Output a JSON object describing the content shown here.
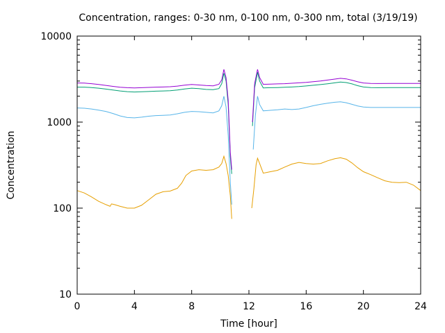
{
  "chart_data": {
    "type": "line",
    "title": "Concentration, ranges: 0-30 nm, 0-100 nm, 0-300 nm, total (3/19/19)",
    "xlabel": "Time [hour]",
    "ylabel": "Concentration",
    "xlim": [
      0,
      24
    ],
    "ylim": [
      10,
      10000
    ],
    "yscale": "log",
    "grid": false,
    "x_ticks": [
      0,
      4,
      8,
      12,
      16,
      20,
      24
    ],
    "x_tick_labels": [
      "0",
      "4",
      "8",
      "12",
      "16",
      "20",
      "24"
    ],
    "y_ticks": [
      10,
      100,
      1000,
      10000
    ],
    "y_tick_labels": [
      "10",
      "100",
      "1000",
      "10000"
    ],
    "series": [
      {
        "color": "#e69f00",
        "segments": [
          [
            [
              0,
              160
            ],
            [
              0.5,
              150
            ],
            [
              1,
              135
            ],
            [
              1.5,
              120
            ],
            [
              2,
              110
            ],
            [
              2.3,
              105
            ],
            [
              2.4,
              112
            ],
            [
              2.6,
              110
            ],
            [
              3,
              105
            ],
            [
              3.5,
              100
            ],
            [
              4,
              100
            ],
            [
              4.5,
              108
            ],
            [
              5,
              125
            ],
            [
              5.5,
              145
            ],
            [
              6,
              155
            ],
            [
              6.5,
              158
            ],
            [
              7,
              170
            ],
            [
              7.3,
              195
            ],
            [
              7.6,
              240
            ],
            [
              8,
              270
            ],
            [
              8.5,
              280
            ],
            [
              9,
              275
            ],
            [
              9.5,
              280
            ],
            [
              9.9,
              300
            ],
            [
              10.1,
              330
            ],
            [
              10.25,
              400
            ],
            [
              10.4,
              330
            ],
            [
              10.55,
              240
            ],
            [
              10.7,
              140
            ],
            [
              10.8,
              75
            ]
          ],
          [
            [
              12.2,
              100
            ],
            [
              12.35,
              170
            ],
            [
              12.5,
              320
            ],
            [
              12.6,
              380
            ],
            [
              12.75,
              330
            ],
            [
              13,
              255
            ],
            [
              13.5,
              265
            ],
            [
              14,
              275
            ],
            [
              14.5,
              300
            ],
            [
              15,
              325
            ],
            [
              15.5,
              340
            ],
            [
              16,
              330
            ],
            [
              16.5,
              325
            ],
            [
              17,
              330
            ],
            [
              17.5,
              355
            ],
            [
              18,
              375
            ],
            [
              18.4,
              385
            ],
            [
              18.8,
              370
            ],
            [
              19.2,
              335
            ],
            [
              19.6,
              295
            ],
            [
              20,
              265
            ],
            [
              20.5,
              245
            ],
            [
              21,
              225
            ],
            [
              21.5,
              208
            ],
            [
              22,
              200
            ],
            [
              22.5,
              198
            ],
            [
              23,
              200
            ],
            [
              23.5,
              185
            ],
            [
              24,
              160
            ]
          ]
        ]
      },
      {
        "color": "#56b4e9",
        "segments": [
          [
            [
              0,
              1460
            ],
            [
              0.5,
              1450
            ],
            [
              1,
              1420
            ],
            [
              1.5,
              1380
            ],
            [
              2,
              1330
            ],
            [
              2.5,
              1260
            ],
            [
              3,
              1180
            ],
            [
              3.5,
              1130
            ],
            [
              4,
              1120
            ],
            [
              4.5,
              1140
            ],
            [
              5,
              1170
            ],
            [
              5.5,
              1190
            ],
            [
              6,
              1200
            ],
            [
              6.5,
              1210
            ],
            [
              7,
              1250
            ],
            [
              7.5,
              1300
            ],
            [
              8,
              1330
            ],
            [
              8.5,
              1320
            ],
            [
              9,
              1300
            ],
            [
              9.5,
              1280
            ],
            [
              9.9,
              1350
            ],
            [
              10.1,
              1550
            ],
            [
              10.25,
              2000
            ],
            [
              10.4,
              1500
            ],
            [
              10.55,
              700
            ],
            [
              10.7,
              200
            ],
            [
              10.8,
              110
            ]
          ],
          [
            [
              12.3,
              480
            ],
            [
              12.45,
              1200
            ],
            [
              12.6,
              2000
            ],
            [
              12.75,
              1600
            ],
            [
              13,
              1350
            ],
            [
              13.5,
              1370
            ],
            [
              14,
              1390
            ],
            [
              14.5,
              1420
            ],
            [
              15,
              1400
            ],
            [
              15.5,
              1420
            ],
            [
              16,
              1480
            ],
            [
              16.5,
              1550
            ],
            [
              17,
              1610
            ],
            [
              17.5,
              1660
            ],
            [
              18,
              1700
            ],
            [
              18.4,
              1720
            ],
            [
              18.8,
              1680
            ],
            [
              19.2,
              1610
            ],
            [
              19.6,
              1540
            ],
            [
              20,
              1500
            ],
            [
              20.5,
              1480
            ],
            [
              21,
              1480
            ],
            [
              22,
              1480
            ],
            [
              23,
              1480
            ],
            [
              24,
              1480
            ]
          ]
        ]
      },
      {
        "color": "#009e73",
        "segments": [
          [
            [
              0,
              2550
            ],
            [
              0.5,
              2550
            ],
            [
              1,
              2520
            ],
            [
              1.5,
              2480
            ],
            [
              2,
              2420
            ],
            [
              2.5,
              2360
            ],
            [
              3,
              2300
            ],
            [
              3.5,
              2260
            ],
            [
              4,
              2240
            ],
            [
              4.5,
              2250
            ],
            [
              5,
              2270
            ],
            [
              5.5,
              2290
            ],
            [
              6,
              2300
            ],
            [
              6.5,
              2320
            ],
            [
              7,
              2360
            ],
            [
              7.5,
              2430
            ],
            [
              8,
              2480
            ],
            [
              8.5,
              2450
            ],
            [
              9,
              2400
            ],
            [
              9.5,
              2380
            ],
            [
              9.9,
              2450
            ],
            [
              10.1,
              2800
            ],
            [
              10.25,
              3700
            ],
            [
              10.4,
              3000
            ],
            [
              10.55,
              1600
            ],
            [
              10.7,
              400
            ],
            [
              10.8,
              250
            ]
          ],
          [
            [
              12.25,
              900
            ],
            [
              12.4,
              2500
            ],
            [
              12.6,
              3800
            ],
            [
              12.75,
              3000
            ],
            [
              13,
              2500
            ],
            [
              13.5,
              2510
            ],
            [
              14,
              2520
            ],
            [
              14.5,
              2540
            ],
            [
              15,
              2560
            ],
            [
              15.5,
              2590
            ],
            [
              16,
              2630
            ],
            [
              16.5,
              2680
            ],
            [
              17,
              2730
            ],
            [
              17.5,
              2790
            ],
            [
              18,
              2860
            ],
            [
              18.4,
              2920
            ],
            [
              18.8,
              2880
            ],
            [
              19.2,
              2780
            ],
            [
              19.6,
              2650
            ],
            [
              20,
              2560
            ],
            [
              20.5,
              2520
            ],
            [
              21,
              2510
            ],
            [
              22,
              2520
            ],
            [
              23,
              2520
            ],
            [
              24,
              2520
            ]
          ]
        ]
      },
      {
        "color": "#9400d3",
        "segments": [
          [
            [
              0,
              2850
            ],
            [
              0.5,
              2840
            ],
            [
              1,
              2800
            ],
            [
              1.5,
              2740
            ],
            [
              2,
              2670
            ],
            [
              2.5,
              2600
            ],
            [
              3,
              2540
            ],
            [
              3.5,
              2510
            ],
            [
              4,
              2500
            ],
            [
              4.5,
              2510
            ],
            [
              5,
              2530
            ],
            [
              5.5,
              2550
            ],
            [
              6,
              2560
            ],
            [
              6.5,
              2580
            ],
            [
              7,
              2620
            ],
            [
              7.5,
              2690
            ],
            [
              8,
              2740
            ],
            [
              8.5,
              2700
            ],
            [
              9,
              2660
            ],
            [
              9.5,
              2640
            ],
            [
              9.9,
              2750
            ],
            [
              10.1,
              3100
            ],
            [
              10.25,
              4100
            ],
            [
              10.4,
              3300
            ],
            [
              10.55,
              1800
            ],
            [
              10.7,
              450
            ],
            [
              10.8,
              280
            ]
          ],
          [
            [
              12.25,
              1000
            ],
            [
              12.4,
              2800
            ],
            [
              12.6,
              4100
            ],
            [
              12.75,
              3300
            ],
            [
              13,
              2750
            ],
            [
              13.5,
              2760
            ],
            [
              14,
              2780
            ],
            [
              14.5,
              2800
            ],
            [
              15,
              2830
            ],
            [
              15.5,
              2860
            ],
            [
              16,
              2900
            ],
            [
              16.5,
              2950
            ],
            [
              17,
              3010
            ],
            [
              17.5,
              3080
            ],
            [
              18,
              3160
            ],
            [
              18.4,
              3230
            ],
            [
              18.8,
              3180
            ],
            [
              19.2,
              3070
            ],
            [
              19.6,
              2940
            ],
            [
              20,
              2850
            ],
            [
              20.5,
              2820
            ],
            [
              21,
              2810
            ],
            [
              22,
              2820
            ],
            [
              23,
              2820
            ],
            [
              24,
              2820
            ]
          ]
        ]
      }
    ]
  }
}
